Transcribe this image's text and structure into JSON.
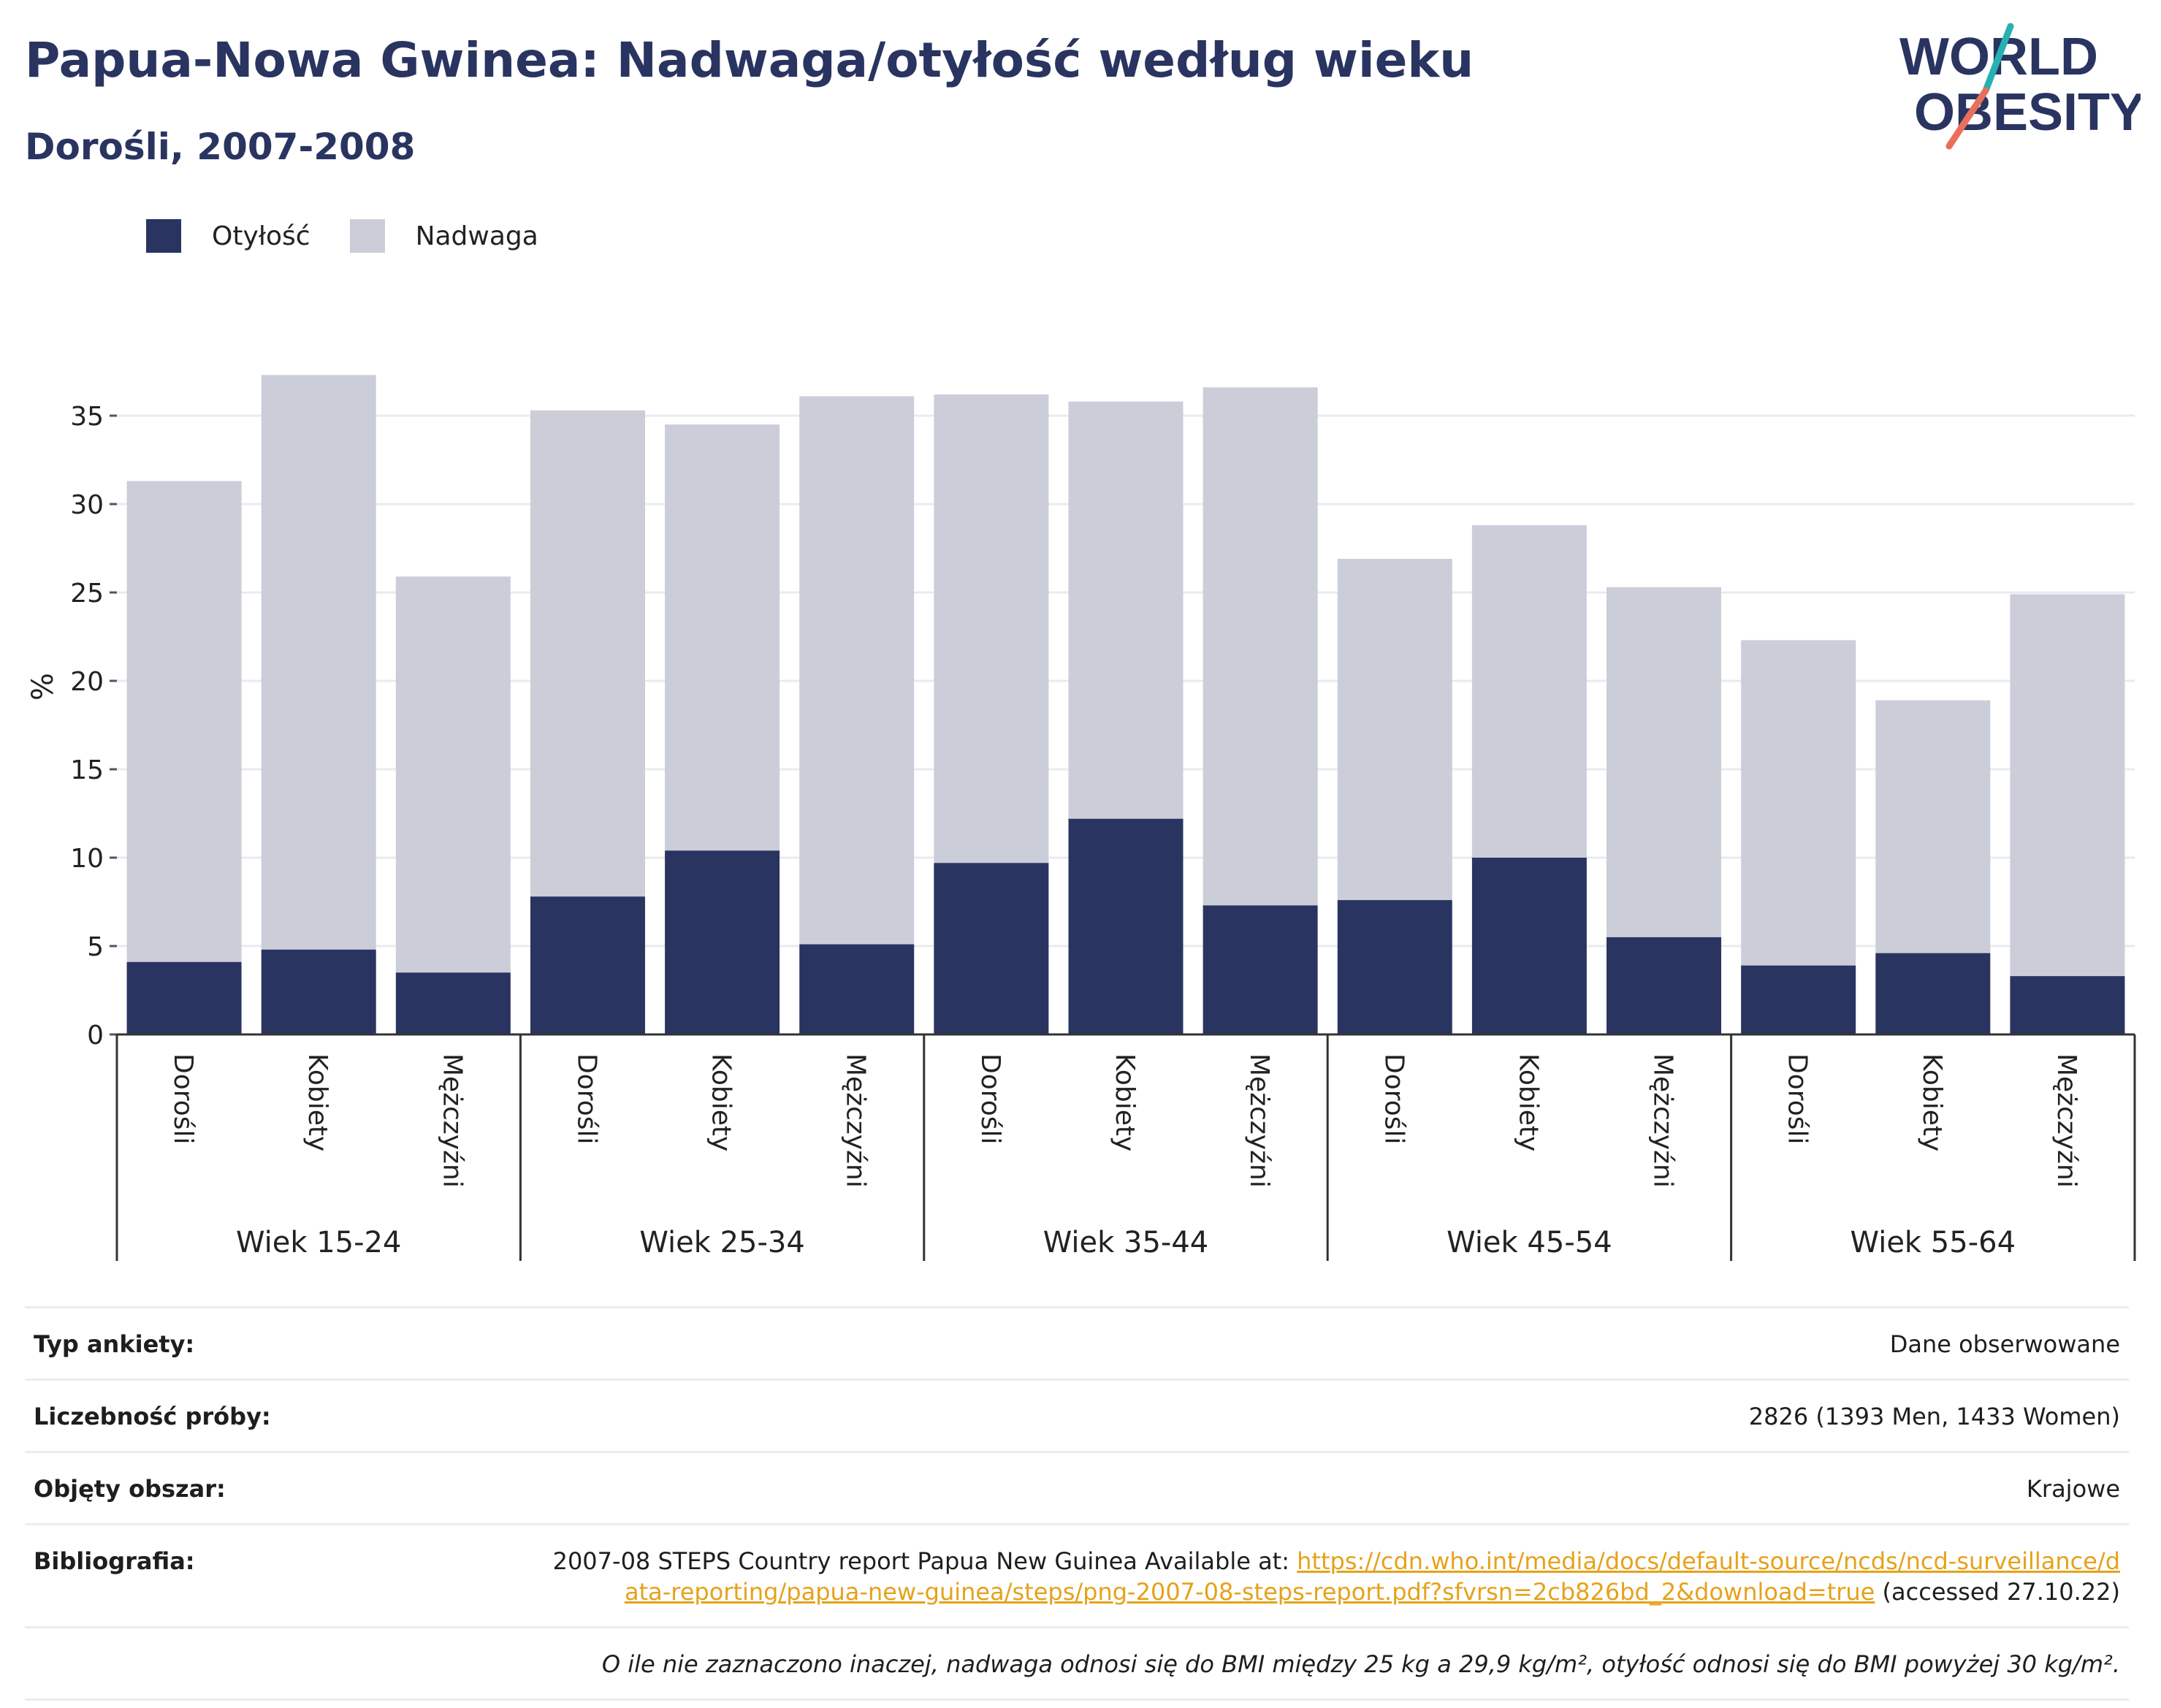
{
  "header": {
    "title": "Papua-Nowa Gwinea: Nadwaga/otyłość według wieku",
    "subtitle": "Dorośli, 2007-2008"
  },
  "logo": {
    "line1": "WORLD",
    "line2": "OBESITY"
  },
  "colors": {
    "obesity": "#2a3461",
    "overweight": "#cbcdd9",
    "link": "#e5a21a"
  },
  "legend": [
    {
      "label": "Otyłość",
      "color": "#2a3461"
    },
    {
      "label": "Nadwaga",
      "color": "#cbcdd9"
    }
  ],
  "chart_data": {
    "type": "bar",
    "stacked": true,
    "ylabel": "%",
    "ylim": [
      0,
      37.5
    ],
    "yticks": [
      0,
      5,
      10,
      15,
      20,
      25,
      30,
      35
    ],
    "grid": true,
    "legend_position": "top-left",
    "groups": [
      {
        "label": "Wiek 15-24",
        "categories": [
          "Dorośli",
          "Kobiety",
          "Mężczyźni"
        ]
      },
      {
        "label": "Wiek 25-34",
        "categories": [
          "Dorośli",
          "Kobiety",
          "Mężczyźni"
        ]
      },
      {
        "label": "Wiek 35-44",
        "categories": [
          "Dorośli",
          "Kobiety",
          "Mężczyźni"
        ]
      },
      {
        "label": "Wiek 45-54",
        "categories": [
          "Dorośli",
          "Kobiety",
          "Mężczyźni"
        ]
      },
      {
        "label": "Wiek 55-64",
        "categories": [
          "Dorośli",
          "Kobiety",
          "Mężczyźni"
        ]
      }
    ],
    "series": [
      {
        "name": "Otyłość",
        "values": [
          4.1,
          4.8,
          3.5,
          7.8,
          10.4,
          5.1,
          9.7,
          12.2,
          7.3,
          7.6,
          10.0,
          5.5,
          3.9,
          4.6,
          3.3
        ]
      },
      {
        "name": "Nadwaga",
        "values": [
          27.2,
          32.5,
          22.4,
          27.5,
          24.1,
          31.0,
          26.5,
          23.6,
          29.3,
          19.3,
          18.8,
          19.8,
          18.4,
          14.3,
          21.6
        ]
      }
    ]
  },
  "info": {
    "rows": [
      {
        "key": "Typ ankiety:",
        "value": "Dane obserwowane"
      },
      {
        "key": "Liczebność próby:",
        "value": "2826 (1393 Men, 1433 Women)"
      },
      {
        "key": "Objęty obszar:",
        "value": "Krajowe"
      }
    ],
    "bibliography": {
      "key": "Bibliografia:",
      "prefix": "2007-08 STEPS Country report Papua New Guinea Available at: ",
      "link": "https://cdn.who.int/media/docs/default-source/ncds/ncd-surveillance/data-reporting/papua-new-guinea/steps/png-2007-08-steps-report.pdf?sfvrsn=2cb826bd_2&download=true",
      "suffix": " (accessed 27.10.22)"
    },
    "note": "O ile nie zaznaczono inaczej, nadwaga odnosi się do BMI między 25 kg a 29,9 kg/m², otyłość odnosi się do BMI powyżej 30 kg/m²."
  }
}
